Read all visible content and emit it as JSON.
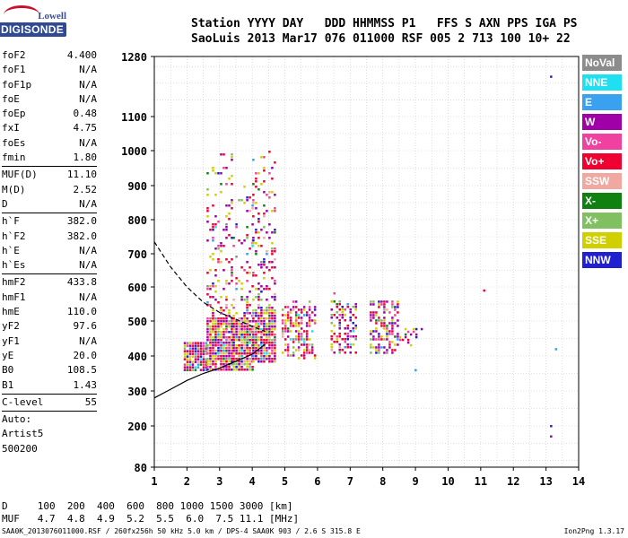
{
  "logo": {
    "top": "Lowell",
    "main": "DIGISONDE"
  },
  "header": {
    "line1": "Station YYYY DAY   DDD HHMMSS P1   FFS S AXN PPS IGA PS",
    "line2": "SaoLuis 2013 Mar17 076 011000 RSF 005 2 713 100 10+ 22"
  },
  "params": {
    "group1": [
      {
        "name": "foF2",
        "value": "4.400"
      },
      {
        "name": "foF1",
        "value": "N/A"
      },
      {
        "name": "foF1p",
        "value": "N/A"
      },
      {
        "name": "foE",
        "value": "N/A"
      },
      {
        "name": "foEp",
        "value": "0.48"
      },
      {
        "name": "fxI",
        "value": "4.75"
      },
      {
        "name": "foEs",
        "value": "N/A"
      },
      {
        "name": "fmin",
        "value": "1.80"
      }
    ],
    "group2": [
      {
        "name": "MUF(D)",
        "value": "11.10"
      },
      {
        "name": "M(D)",
        "value": "2.52"
      },
      {
        "name": "D",
        "value": "N/A"
      }
    ],
    "group3": [
      {
        "name": "h`F",
        "value": "382.0"
      },
      {
        "name": "h`F2",
        "value": "382.0"
      },
      {
        "name": "h`E",
        "value": "N/A"
      },
      {
        "name": "h`Es",
        "value": "N/A"
      }
    ],
    "group4": [
      {
        "name": "hmF2",
        "value": "433.8"
      },
      {
        "name": "hmF1",
        "value": "N/A"
      },
      {
        "name": "hmE",
        "value": "110.0"
      },
      {
        "name": "yF2",
        "value": "97.6"
      },
      {
        "name": "yF1",
        "value": "N/A"
      },
      {
        "name": "yE",
        "value": "20.0"
      },
      {
        "name": "B0",
        "value": "108.5"
      },
      {
        "name": "B1",
        "value": "1.43"
      }
    ],
    "group5": [
      {
        "name": "C-level",
        "value": "55"
      }
    ],
    "auto": [
      "Auto:",
      "Artist5",
      "500200"
    ]
  },
  "legend": [
    {
      "label": "NoVal",
      "color": "#8c8c8c"
    },
    {
      "label": "NNE",
      "color": "#1fe0f0"
    },
    {
      "label": "E",
      "color": "#3aa0f0"
    },
    {
      "label": "W",
      "color": "#a000a8"
    },
    {
      "label": "Vo-",
      "color": "#f040a0"
    },
    {
      "label": "Vo+",
      "color": "#f00030"
    },
    {
      "label": "SSW",
      "color": "#f0a8a0"
    },
    {
      "label": "X-",
      "color": "#108010"
    },
    {
      "label": "X+",
      "color": "#80c060"
    },
    {
      "label": "SSE",
      "color": "#d0d000"
    },
    {
      "label": "NNW",
      "color": "#2020d0"
    }
  ],
  "bottom": {
    "line1": "D     100  200  400  600  800 1000 1500 3000 [km]",
    "line2": "MUF   4.7  4.8  4.9  5.2  5.5  6.0  7.5 11.1 [MHz]"
  },
  "footer": {
    "left": "SAA0K_2013076011000.RSF / 260fx256h 50 kHz 5.0 km / DPS-4 SAA0K 903 / 2.6 S 315.8 E",
    "right": "Ion2Png 1.3.17"
  },
  "chart_data": {
    "type": "scatter",
    "title": "",
    "xlabel": "",
    "ylabel": "",
    "xlim": [
      1,
      14
    ],
    "ylim": [
      80,
      1280
    ],
    "x_ticks": [
      "1",
      "2",
      "3",
      "4",
      "5",
      "6",
      "7",
      "8",
      "9",
      "10",
      "11",
      "12",
      "13",
      "14"
    ],
    "y_ticks": [
      "80",
      "200",
      "300",
      "400",
      "500",
      "600",
      "700",
      "800",
      "900",
      "1000",
      "1100",
      "1280"
    ],
    "grid": true,
    "clusters": [
      {
        "x": [
          1.9,
          2.6
        ],
        "y": [
          360,
          440
        ],
        "density": "high"
      },
      {
        "x": [
          2.6,
          3.4
        ],
        "y": [
          360,
          1000
        ],
        "density": "high"
      },
      {
        "x": [
          3.4,
          4.0
        ],
        "y": [
          360,
          900
        ],
        "density": "high"
      },
      {
        "x": [
          4.0,
          4.7
        ],
        "y": [
          380,
          1000
        ],
        "density": "high"
      },
      {
        "x": [
          4.9,
          5.9
        ],
        "y": [
          390,
          560
        ],
        "density": "medium"
      },
      {
        "x": [
          6.4,
          7.2
        ],
        "y": [
          410,
          600
        ],
        "density": "medium"
      },
      {
        "x": [
          7.6,
          8.5
        ],
        "y": [
          410,
          560
        ],
        "density": "medium"
      },
      {
        "x": [
          8.5,
          9.4
        ],
        "y": [
          430,
          480
        ],
        "density": "low"
      }
    ],
    "outliers": [
      {
        "x": 13.15,
        "y": 1220,
        "color": "#2020d0"
      },
      {
        "x": 13.15,
        "y": 200,
        "color": "#2020d0"
      },
      {
        "x": 13.15,
        "y": 170,
        "color": "#a000a8"
      },
      {
        "x": 13.3,
        "y": 420,
        "color": "#3aa0f0"
      },
      {
        "x": 11.1,
        "y": 590,
        "color": "#f00030"
      },
      {
        "x": 9.0,
        "y": 360,
        "color": "#3aa0f0"
      }
    ],
    "profile_solid": {
      "x": [
        1.0,
        1.5,
        2.0,
        2.5,
        3.0,
        3.5,
        4.0,
        4.4
      ],
      "y": [
        280,
        305,
        330,
        350,
        365,
        385,
        405,
        434
      ]
    },
    "profile_dashed": {
      "x": [
        1.0,
        1.5,
        2.0,
        2.5,
        3.0,
        3.5,
        4.0,
        4.4
      ],
      "y": [
        735,
        660,
        600,
        555,
        525,
        505,
        485,
        470
      ]
    }
  }
}
